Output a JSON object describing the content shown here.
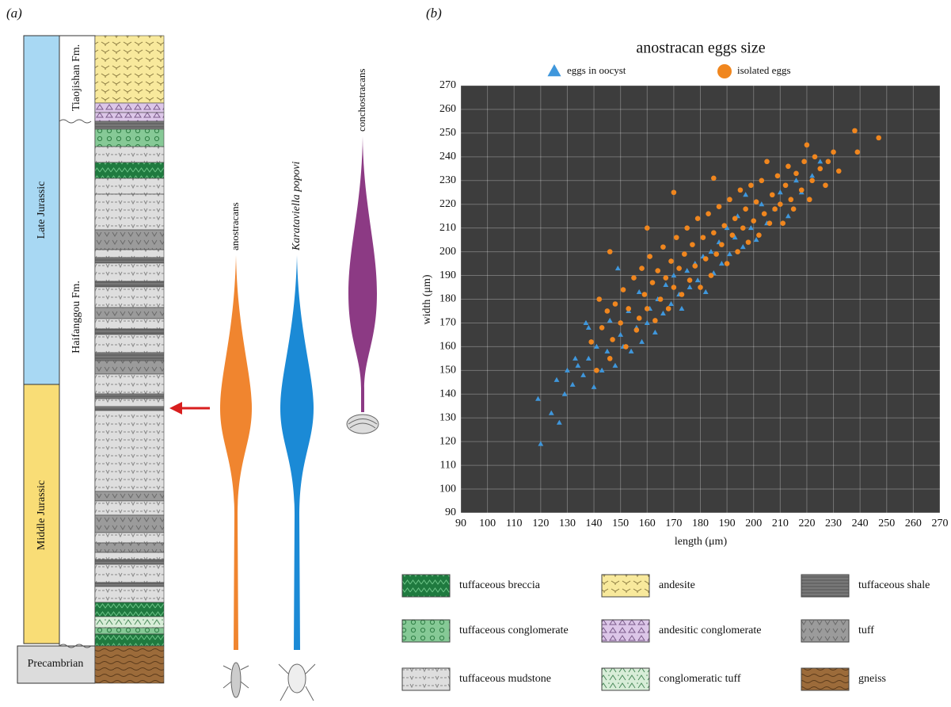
{
  "panel_a": {
    "label": "(a)",
    "ages": [
      "Late Jurassic",
      "Middle Jurassic",
      "Precambrian"
    ],
    "formations": [
      "Tiaojishan Fm.",
      "Haifanggou Fm."
    ],
    "taxa": [
      "anostracans",
      "Karataviella popovi",
      "conchostracans"
    ]
  },
  "panel_b_label": "(b)",
  "chart_data": {
    "type": "scatter",
    "title": "anostracan eggs size",
    "x_label": "length (μm)",
    "y_label": "width (μm)",
    "xlim": [
      90,
      270
    ],
    "ylim": [
      90,
      270
    ],
    "xticks": [
      90,
      100,
      110,
      120,
      130,
      140,
      150,
      160,
      170,
      180,
      190,
      200,
      210,
      220,
      230,
      240,
      250,
      260,
      270
    ],
    "yticks": [
      90,
      100,
      110,
      120,
      130,
      140,
      150,
      160,
      170,
      180,
      190,
      200,
      210,
      220,
      230,
      240,
      250,
      260,
      270
    ],
    "grid": true,
    "series": [
      {
        "name": "eggs in oocyst",
        "color": "#3f97dc",
        "marker": "triangle",
        "x": [
          119,
          120,
          124,
          127,
          126,
          129,
          130,
          132,
          134,
          136,
          138,
          138,
          140,
          141,
          143,
          145,
          146,
          148,
          150,
          151,
          153,
          154,
          156,
          157,
          158,
          160,
          161,
          163,
          164,
          166,
          167,
          169,
          170,
          172,
          173,
          175,
          176,
          178,
          179,
          181,
          182,
          184,
          185,
          187,
          188,
          190,
          191,
          193,
          194,
          196,
          197,
          199,
          201,
          203,
          205,
          208,
          210,
          213,
          216,
          218,
          222,
          225,
          149,
          137,
          133
        ],
        "values": [
          138,
          119,
          132,
          128,
          146,
          140,
          150,
          144,
          152,
          148,
          155,
          168,
          143,
          160,
          150,
          158,
          171,
          152,
          165,
          160,
          175,
          158,
          168,
          183,
          162,
          170,
          176,
          166,
          180,
          174,
          186,
          178,
          190,
          182,
          176,
          192,
          185,
          195,
          188,
          198,
          183,
          200,
          191,
          204,
          195,
          210,
          199,
          206,
          215,
          202,
          224,
          210,
          205,
          220,
          212,
          218,
          225,
          215,
          230,
          225,
          232,
          238,
          193,
          170,
          155
        ]
      },
      {
        "name": "isolated eggs",
        "color": "#f0861e",
        "marker": "circle",
        "x": [
          139,
          141,
          142,
          143,
          145,
          146,
          147,
          148,
          150,
          151,
          152,
          153,
          155,
          156,
          157,
          158,
          159,
          160,
          161,
          162,
          163,
          164,
          165,
          166,
          167,
          168,
          169,
          170,
          171,
          172,
          173,
          174,
          175,
          176,
          177,
          178,
          179,
          180,
          181,
          182,
          183,
          184,
          185,
          186,
          187,
          188,
          189,
          190,
          191,
          192,
          193,
          194,
          195,
          196,
          197,
          198,
          199,
          200,
          201,
          202,
          203,
          204,
          205,
          206,
          207,
          208,
          209,
          210,
          211,
          212,
          213,
          214,
          215,
          216,
          218,
          219,
          220,
          221,
          222,
          223,
          225,
          227,
          228,
          230,
          232,
          238,
          239,
          247,
          185,
          170,
          160,
          146
        ],
        "values": [
          162,
          150,
          180,
          168,
          175,
          155,
          163,
          178,
          170,
          184,
          160,
          176,
          189,
          167,
          172,
          193,
          182,
          176,
          198,
          187,
          171,
          192,
          180,
          202,
          189,
          176,
          196,
          185,
          206,
          193,
          182,
          199,
          210,
          188,
          203,
          194,
          214,
          185,
          206,
          197,
          216,
          190,
          208,
          199,
          219,
          203,
          211,
          195,
          222,
          207,
          214,
          200,
          226,
          210,
          218,
          204,
          228,
          213,
          221,
          207,
          230,
          216,
          238,
          212,
          224,
          218,
          232,
          220,
          212,
          228,
          236,
          222,
          218,
          233,
          226,
          238,
          245,
          222,
          230,
          240,
          235,
          228,
          238,
          242,
          234,
          251,
          242,
          248,
          231,
          225,
          210,
          200
        ]
      }
    ]
  },
  "lithology_legend": [
    "tuffaceous breccia",
    "andesite",
    "tuffaceous shale",
    "tuffaceous conglomerate",
    "andesitic conglomerate",
    "tuff",
    "tuffaceous mudstone",
    "conglomeratic tuff",
    "gneiss"
  ]
}
